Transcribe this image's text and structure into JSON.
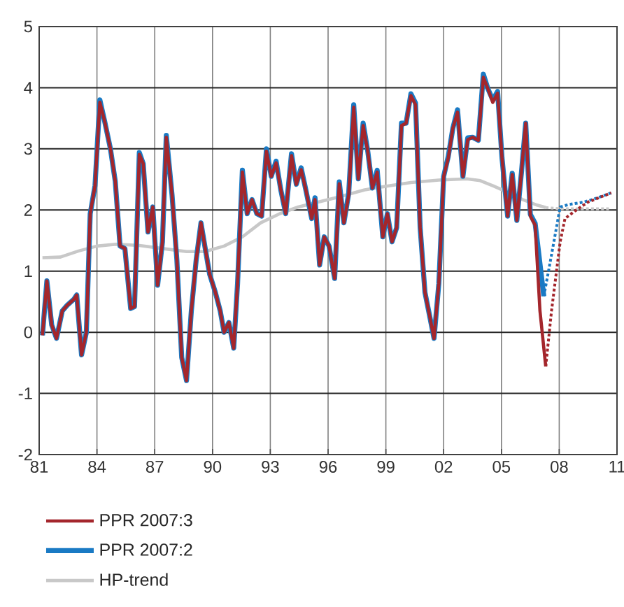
{
  "chart_data": {
    "type": "line",
    "xlim": [
      1981,
      2011
    ],
    "ylim": [
      -2,
      5
    ],
    "xticks": [
      {
        "value": 1981,
        "label": "81"
      },
      {
        "value": 1984,
        "label": "84"
      },
      {
        "value": 1987,
        "label": "87"
      },
      {
        "value": 1990,
        "label": "90"
      },
      {
        "value": 1993,
        "label": "93"
      },
      {
        "value": 1996,
        "label": "96"
      },
      {
        "value": 1999,
        "label": "99"
      },
      {
        "value": 2002,
        "label": "02"
      },
      {
        "value": 2005,
        "label": "05"
      },
      {
        "value": 2008,
        "label": "08"
      },
      {
        "value": 2011,
        "label": "11"
      }
    ],
    "yticks": [
      -2,
      -1,
      0,
      1,
      2,
      3,
      4,
      5
    ],
    "grid": true,
    "legend": "bottom",
    "marker": "none",
    "series": [
      {
        "name": "PPR 2007:3",
        "color": "#a4262c",
        "line_style": "solid",
        "x": [
          1981.17,
          1981.4,
          1981.65,
          1981.9,
          1982.2,
          1982.45,
          1982.8,
          1982.95,
          1983.2,
          1983.45,
          1983.65,
          1983.9,
          1984.15,
          1984.4,
          1984.7,
          1984.95,
          1985.2,
          1985.45,
          1985.75,
          1985.95,
          1986.2,
          1986.4,
          1986.65,
          1986.9,
          1987.15,
          1987.4,
          1987.6,
          1987.9,
          1988.15,
          1988.4,
          1988.65,
          1988.9,
          1989.15,
          1989.4,
          1989.6,
          1989.85,
          1990.15,
          1990.4,
          1990.6,
          1990.85,
          1991.1,
          1991.3,
          1991.55,
          1991.8,
          1992.05,
          1992.3,
          1992.55,
          1992.8,
          1993.05,
          1993.3,
          1993.55,
          1993.8,
          1994.1,
          1994.35,
          1994.6,
          1994.85,
          1995.15,
          1995.32,
          1995.56,
          1995.8,
          1996.05,
          1996.34,
          1996.58,
          1996.82,
          1997.07,
          1997.33,
          1997.57,
          1997.82,
          1998.06,
          1998.3,
          1998.55,
          1998.84,
          1999.08,
          1999.32,
          1999.56,
          1999.81,
          2000.05,
          2000.3,
          2000.54,
          2000.78,
          2001.03,
          2001.27,
          2001.5,
          2001.75,
          2002.0,
          2002.24,
          2002.48,
          2002.72,
          2003.0,
          2003.25,
          2003.5,
          2003.8,
          2004.06,
          2004.3,
          2004.55,
          2004.8,
          2005.03,
          2005.32,
          2005.56,
          2005.8,
          2006.04,
          2006.26,
          2006.5,
          2006.75,
          2007.0,
          2007.3
        ],
        "values": [
          -0.05,
          0.84,
          0.12,
          -0.1,
          0.35,
          0.44,
          0.54,
          0.61,
          -0.37,
          0.0,
          1.94,
          2.4,
          3.76,
          3.45,
          3.0,
          2.47,
          1.41,
          1.37,
          0.39,
          0.42,
          2.91,
          2.76,
          1.64,
          2.05,
          0.77,
          1.48,
          3.19,
          2.24,
          1.18,
          -0.41,
          -0.79,
          0.35,
          1.18,
          1.79,
          1.41,
          0.95,
          0.65,
          0.35,
          0.0,
          0.16,
          -0.26,
          0.8,
          2.62,
          1.94,
          2.17,
          1.94,
          1.9,
          2.96,
          2.55,
          2.77,
          2.32,
          1.94,
          2.89,
          2.42,
          2.66,
          2.32,
          1.86,
          2.17,
          1.1,
          1.56,
          1.41,
          0.88,
          2.43,
          1.79,
          2.24,
          3.68,
          2.51,
          3.38,
          2.96,
          2.36,
          2.62,
          1.56,
          1.94,
          1.48,
          1.71,
          3.38,
          3.42,
          3.87,
          3.72,
          1.71,
          0.65,
          0.27,
          -0.1,
          0.8,
          2.55,
          2.85,
          3.34,
          3.6,
          2.55,
          3.15,
          3.19,
          3.14,
          4.17,
          3.98,
          3.76,
          3.91,
          2.85,
          1.9,
          2.58,
          1.83,
          2.62,
          3.42,
          1.9,
          1.75,
          0.35,
          -0.56
        ]
      },
      {
        "color": "#a4262c",
        "line_style": "dotted",
        "x": [
          2007.3,
          2007.6,
          2008.05,
          2008.3,
          2008.8,
          2009.5,
          2010.7
        ],
        "values": [
          -0.56,
          0.35,
          1.48,
          1.86,
          1.98,
          2.13,
          2.28
        ]
      },
      {
        "name": "PPR 2007:2",
        "color": "#1a7ac4",
        "line_style": "solid",
        "x": [
          1981.17,
          1981.4,
          1981.65,
          1981.9,
          1982.2,
          1982.45,
          1982.8,
          1982.95,
          1983.2,
          1983.45,
          1983.65,
          1983.9,
          1984.15,
          1984.4,
          1984.7,
          1984.95,
          1985.2,
          1985.45,
          1985.75,
          1985.95,
          1986.2,
          1986.4,
          1986.65,
          1986.9,
          1987.15,
          1987.4,
          1987.6,
          1987.9,
          1988.15,
          1988.4,
          1988.65,
          1988.9,
          1989.15,
          1989.4,
          1989.6,
          1989.85,
          1990.15,
          1990.4,
          1990.6,
          1990.85,
          1991.1,
          1991.3,
          1991.55,
          1991.8,
          1992.05,
          1992.3,
          1992.55,
          1992.8,
          1993.05,
          1993.3,
          1993.55,
          1993.8,
          1994.1,
          1994.35,
          1994.6,
          1994.85,
          1995.15,
          1995.32,
          1995.56,
          1995.8,
          1996.05,
          1996.34,
          1996.58,
          1996.82,
          1997.07,
          1997.33,
          1997.57,
          1997.82,
          1998.06,
          1998.3,
          1998.55,
          1998.84,
          1999.08,
          1999.32,
          1999.56,
          1999.81,
          2000.05,
          2000.3,
          2000.54,
          2000.78,
          2001.03,
          2001.27,
          2001.5,
          2001.75,
          2002.0,
          2002.24,
          2002.48,
          2002.72,
          2003.0,
          2003.25,
          2003.5,
          2003.8,
          2004.06,
          2004.3,
          2004.55,
          2004.8,
          2005.03,
          2005.32,
          2005.56,
          2005.8,
          2006.04,
          2006.26,
          2006.5,
          2006.75,
          2007.2
        ],
        "values": [
          -0.05,
          0.84,
          0.12,
          -0.1,
          0.35,
          0.44,
          0.54,
          0.61,
          -0.37,
          0.0,
          1.94,
          2.4,
          3.8,
          3.45,
          3.0,
          2.47,
          1.41,
          1.37,
          0.39,
          0.42,
          2.94,
          2.76,
          1.64,
          2.05,
          0.77,
          1.48,
          3.22,
          2.24,
          1.18,
          -0.41,
          -0.79,
          0.35,
          1.18,
          1.79,
          1.41,
          0.95,
          0.65,
          0.35,
          0.0,
          0.16,
          -0.26,
          0.8,
          2.65,
          1.94,
          2.17,
          1.94,
          1.9,
          3.0,
          2.55,
          2.8,
          2.32,
          1.94,
          2.92,
          2.42,
          2.69,
          2.32,
          1.86,
          2.2,
          1.1,
          1.56,
          1.41,
          0.88,
          2.46,
          1.79,
          2.27,
          3.72,
          2.51,
          3.42,
          2.96,
          2.36,
          2.65,
          1.56,
          1.94,
          1.48,
          1.71,
          3.42,
          3.42,
          3.9,
          3.75,
          1.71,
          0.65,
          0.27,
          -0.1,
          0.8,
          2.55,
          2.88,
          3.34,
          3.64,
          2.55,
          3.18,
          3.19,
          3.14,
          4.22,
          3.98,
          3.8,
          3.94,
          2.85,
          1.9,
          2.6,
          1.83,
          2.62,
          3.42,
          1.93,
          1.78,
          0.59
        ]
      },
      {
        "color": "#1a7ac4",
        "line_style": "dotted",
        "x": [
          2007.2,
          2007.55,
          2008.05,
          2008.5,
          2009.3,
          2010.0,
          2010.7
        ],
        "values": [
          0.59,
          1.18,
          2.05,
          2.09,
          2.13,
          2.2,
          2.28
        ]
      },
      {
        "name": "HP-trend",
        "color": "#c8c8c8",
        "line_style": "solid",
        "x": [
          1981.17,
          1982.1,
          1983.05,
          1984.0,
          1985.0,
          1986.2,
          1987.4,
          1988.65,
          1989.6,
          1990.6,
          1991.55,
          1992.5,
          1993.5,
          1994.45,
          1994.96,
          1996.4,
          1997.9,
          1999.03,
          2000.3,
          2001.75,
          2003.2,
          2003.9,
          2004.6,
          2005.4,
          2006.1,
          2006.85,
          2007.3
        ],
        "values": [
          1.22,
          1.23,
          1.33,
          1.41,
          1.44,
          1.42,
          1.37,
          1.32,
          1.32,
          1.41,
          1.56,
          1.79,
          1.94,
          2.05,
          2.09,
          2.2,
          2.33,
          2.39,
          2.45,
          2.49,
          2.51,
          2.48,
          2.39,
          2.28,
          2.17,
          2.08,
          2.04
        ]
      },
      {
        "color": "#c8c8c8",
        "line_style": "dotted",
        "x": [
          2007.3,
          2008.05,
          2010.7
        ],
        "values": [
          2.04,
          2.02,
          2.02
        ]
      }
    ]
  }
}
